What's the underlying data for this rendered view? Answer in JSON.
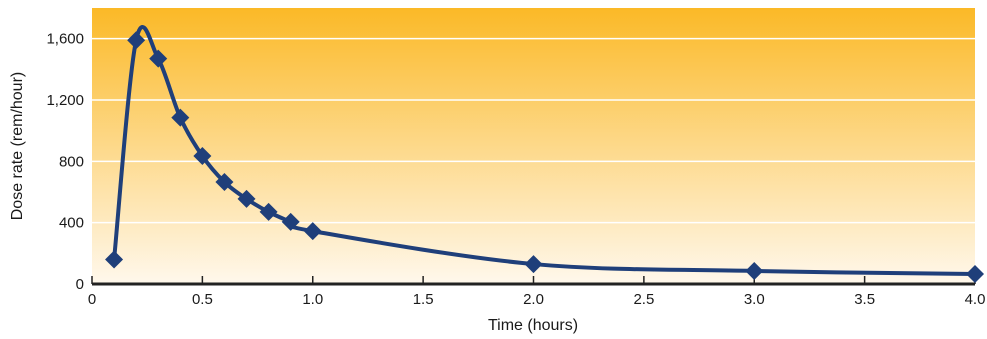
{
  "chart_data": {
    "type": "line",
    "title": "",
    "xlabel": "Time (hours)",
    "ylabel": "Dose rate (rem/hour)",
    "xlim": [
      0,
      4.0
    ],
    "ylim": [
      0,
      1600
    ],
    "x_ticks": [
      0,
      0.5,
      1.0,
      1.5,
      2.0,
      2.5,
      3.0,
      3.5,
      4.0
    ],
    "x_tick_labels": [
      "0",
      "0.5",
      "1.0",
      "1.5",
      "2.0",
      "2.5",
      "3.0",
      "3.5",
      "4.0"
    ],
    "y_ticks": [
      0,
      400,
      800,
      1200,
      1600
    ],
    "y_tick_labels": [
      "0",
      "400",
      "800",
      "1,200",
      "1,600"
    ],
    "grid": "horizontal",
    "legend": "none",
    "series": [
      {
        "x": [
          0.1,
          0.2,
          0.3,
          0.4,
          0.5,
          0.6,
          0.7,
          0.8,
          0.9,
          1.0,
          2.0,
          3.0,
          4.0
        ],
        "values": [
          160,
          1590,
          1470,
          1085,
          835,
          665,
          555,
          470,
          405,
          345,
          130,
          85,
          65
        ]
      }
    ],
    "colors": {
      "line": "#1f3f7a",
      "marker": "#1f3f7a",
      "gradient_top": "#fbb927",
      "gradient_bottom": "#fff8ec",
      "grid": "#ffffff",
      "axis": "#222222"
    }
  }
}
